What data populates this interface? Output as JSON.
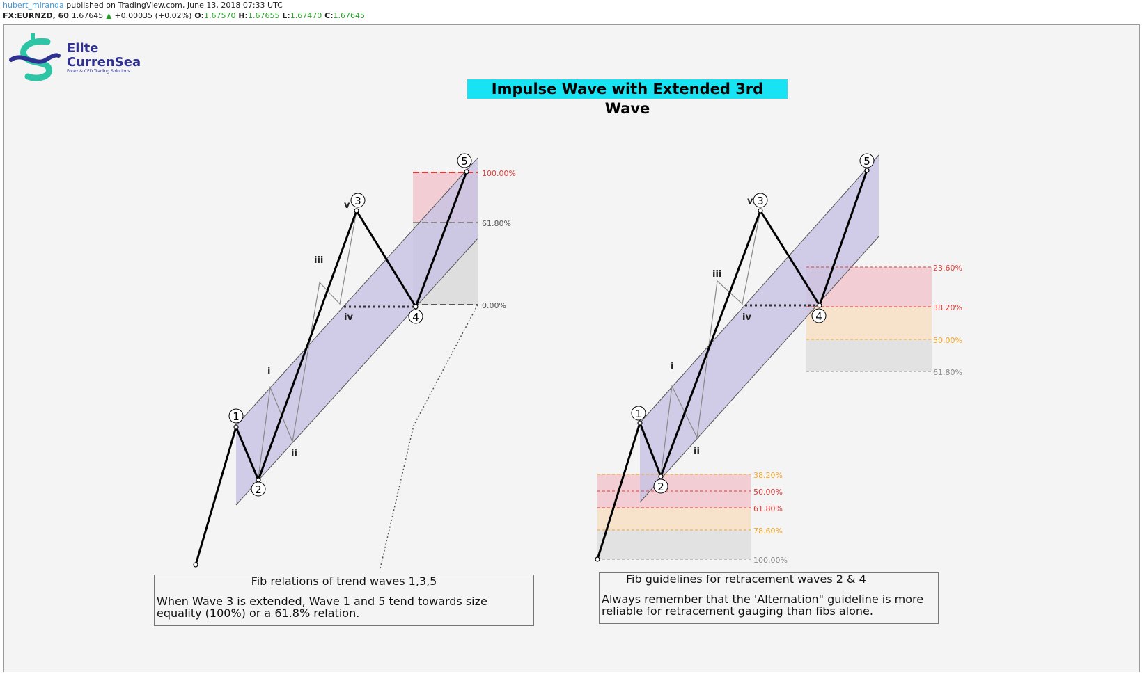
{
  "header": {
    "user": "hubert_miranda",
    "published": " published on TradingView.com, June 13, 2018 07:33 UTC",
    "symbol": "FX:EURNZD, 60",
    "last": "1.67645",
    "change": "+0.00035 (+0.02%)",
    "o_label": "O:",
    "o_value": "1.67570",
    "h_label": "H:",
    "h_value": "1.67655",
    "l_label": "L:",
    "l_value": "1.67470",
    "c_label": "C:",
    "c_value": "1.67645"
  },
  "logo": {
    "line1": "Elite",
    "line2": "CurrenSea",
    "tagline": "Forex & CFD Trading Solutions"
  },
  "title": "Impulse Wave with Extended 3rd Wave",
  "left_diagram": {
    "fib_levels": [
      "100.00%",
      "61.80%",
      "0.00%"
    ],
    "wave_labels": [
      "1",
      "2",
      "3",
      "4",
      "5"
    ],
    "subwave_labels": [
      "i",
      "ii",
      "iii",
      "iv",
      "v"
    ]
  },
  "right_diagram": {
    "wave4_fib_levels": [
      "23.60%",
      "38.20%",
      "50.00%",
      "61.80%"
    ],
    "wave2_fib_levels": [
      "38.20%",
      "50.00%",
      "61.80%",
      "78.60%",
      "100.00%"
    ],
    "wave_labels": [
      "1",
      "2",
      "3",
      "4",
      "5"
    ],
    "subwave_labels": [
      "i",
      "ii",
      "iii",
      "iv",
      "v"
    ]
  },
  "notes": {
    "left_head": "Fib relations of trend waves 1,3,5",
    "left_body": "When Wave 3 is extended, Wave 1 and 5 tend towards size equality (100%) or a 61.8% relation.",
    "right_head": "Fib guidelines for retracement waves 2 & 4",
    "right_body": "Always remember that the 'Alternation\" guideline is more reliable for retracement gauging than fibs alone."
  },
  "colors": {
    "channel": "#c9c3e3",
    "title_bg": "#17e3f3",
    "fib_red": "#e53935",
    "fib_orange": "#f5a623",
    "fib_grey": "#888888",
    "logo_teal": "#2ec4a6",
    "logo_navy": "#2e3192"
  }
}
